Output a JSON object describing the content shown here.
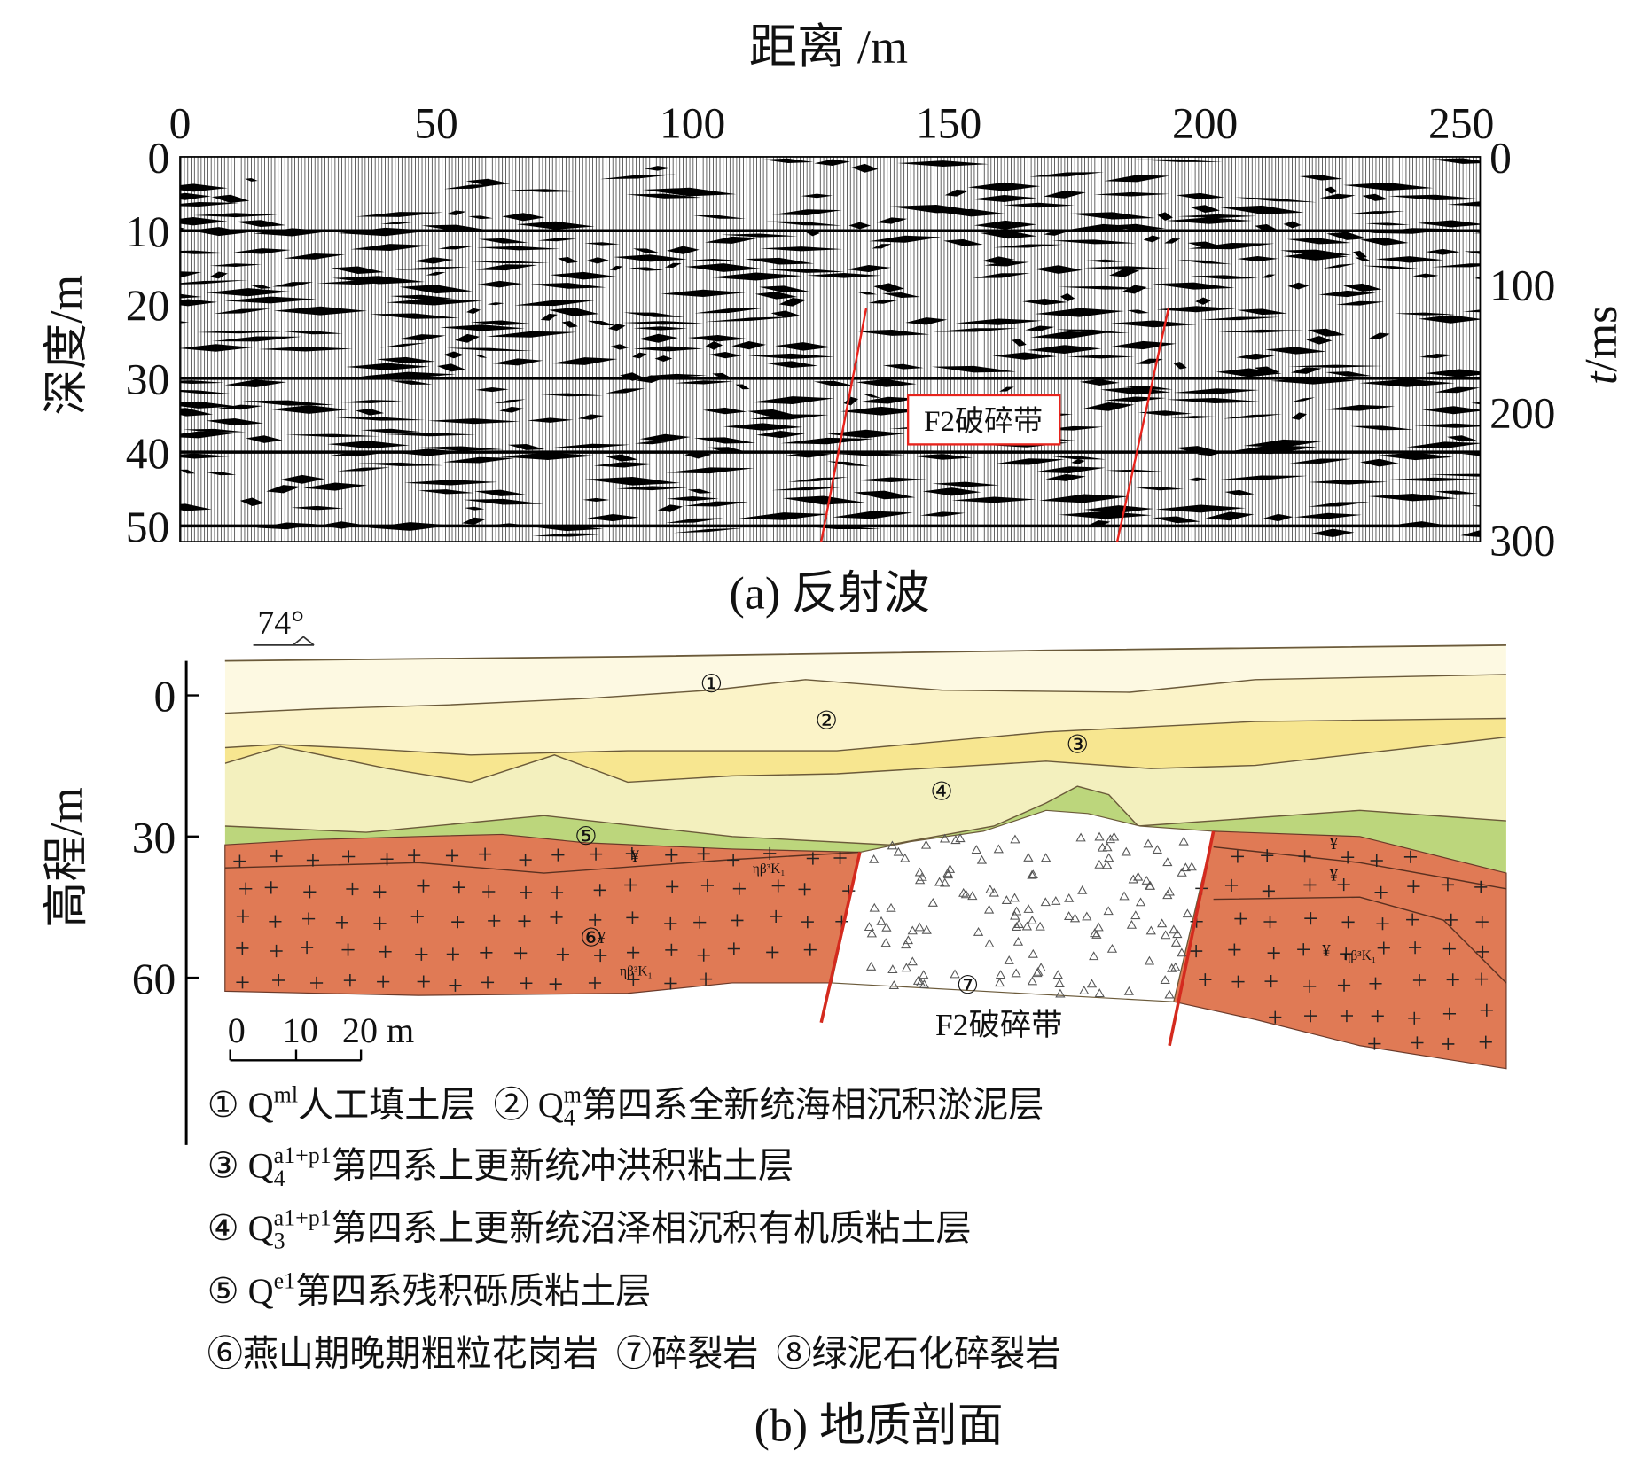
{
  "panel_a": {
    "x_axis_title": "距离 /m",
    "x_ticks": [
      0,
      50,
      100,
      150,
      200,
      250
    ],
    "y_axis_title": "深度/m",
    "y_ticks": [
      0,
      10,
      20,
      30,
      40,
      50
    ],
    "y2_axis_title": {
      "variable": "t",
      "unit": "/ms"
    },
    "y2_ticks": [
      0,
      100,
      200,
      300
    ],
    "annotation": "F2破碎带",
    "caption": "(a) 反射波"
  },
  "panel_b": {
    "dip_label": "74°",
    "y_axis_title": "高程/m",
    "y_ticks": [
      0,
      30,
      60
    ],
    "layer_labels": [
      "①",
      "②",
      "③",
      "④",
      "⑤",
      "⑥",
      "⑦"
    ],
    "zone_label": "F2破碎带",
    "rock_codes": [
      "ηβ³K₁",
      "ηβ³K₁",
      "ηβ³K₁"
    ],
    "rock_symbols": [
      "¥",
      "¥",
      "¥",
      "¥",
      "¥"
    ],
    "scale_bar": [
      "0",
      "10",
      "20 m"
    ],
    "legend": [
      [
        "① Q",
        {
          "sup": "ml"
        },
        "人工填土层  ② Q",
        {
          "sup": "m",
          "sub": "4"
        },
        "第四系全新统海相沉积淤泥层"
      ],
      [
        "③ Q",
        {
          "sup": "a1+p1",
          "sub": "4"
        },
        "第四系上更新统冲洪积粘土层"
      ],
      [
        "④ Q",
        {
          "sup": "a1+p1",
          "sub": "3"
        },
        "第四系上更新统沼泽相沉积有机质粘土层"
      ],
      [
        "⑤ Q",
        {
          "sup": "e1"
        },
        "第四系残积砾质粘土层"
      ],
      [
        "⑥燕山期晚期粗粒花岗岩  ⑦碎裂岩  ⑧绿泥石化碎裂岩"
      ]
    ],
    "caption": "(b) 地质剖面"
  }
}
